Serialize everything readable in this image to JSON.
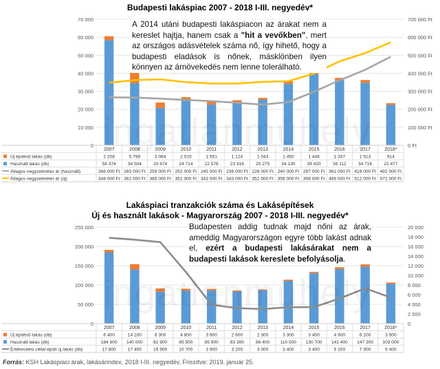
{
  "watermark": "ingatlanmühely",
  "source_label": "Forrás:",
  "source_text": "KSH Lakáspiaci árak, lakásárindex, 2018 I-III. negyedév, Frissítve: 2019. január 25.",
  "colors": {
    "new": "#ed7d31",
    "used": "#5b9bd5",
    "avg_used": "#a5a5a5",
    "avg_new": "#ffc000",
    "line2": "#8c8c8c"
  },
  "chart_data": [
    {
      "type": "bar",
      "title": "Budapesti lakáspiac 2007 - 2018 I-III. negyedév*",
      "categories": [
        "2007",
        "2008",
        "2009",
        "2010",
        "2011",
        "2012",
        "2013",
        "2014",
        "2015",
        "2016",
        "2017",
        "2018*"
      ],
      "left_ticks": [
        "70 000",
        "60 000",
        "50 000",
        "40 000",
        "30 000",
        "20 000",
        "10 000",
        "0"
      ],
      "right_ticks": [
        "700 000 Ft",
        "600 000 Ft",
        "500 000 Ft",
        "400 000 Ft",
        "300 000 Ft",
        "200 000 Ft",
        "100 000 Ft",
        "0 Ft"
      ],
      "ylim": [
        0,
        70000
      ],
      "y2lim": [
        0,
        700000
      ],
      "series": [
        {
          "name": "Új építésű lakás (db)",
          "values": [
            2208,
            5798,
            3064,
            2015,
            1551,
            1124,
            1043,
            1450,
            1446,
            1337,
            1513,
            914
          ],
          "labels": [
            "2 208",
            "5 798",
            "3 064",
            "2 015",
            "1 551",
            "1 124",
            "1 043",
            "1 450",
            "1 446",
            "1 337",
            "1 513",
            "914"
          ]
        },
        {
          "name": "Használt lakás (db)",
          "values": [
            58374,
            34504,
            20674,
            24714,
            22578,
            23916,
            25275,
            34130,
            39420,
            36112,
            34716,
            22477
          ],
          "labels": [
            "58 374",
            "34 504",
            "20 674",
            "24 714",
            "22 578",
            "23 916",
            "25 275",
            "34 130",
            "39 420",
            "36 112",
            "34 716",
            "22 477"
          ]
        },
        {
          "name": "Átlagos negyzetméter ár (használt)",
          "values": [
            266000,
            265000,
            259000,
            252000,
            245000,
            236000,
            226000,
            240000,
            297000,
            361000,
            419000,
            492000
          ],
          "labels": [
            "266 000 Ft",
            "265 000 Ft",
            "259 000 Ft",
            "252 000 Ft",
            "245 000 Ft",
            "236 000 Ft",
            "226 000 Ft",
            "240 000 Ft",
            "297 000 Ft",
            "361 000 Ft",
            "419 000 Ft",
            "492 000 Ft"
          ]
        },
        {
          "name": "Átlagos negyzetméter ár (új)",
          "values": [
            348000,
            362000,
            366000,
            351000,
            343000,
            343000,
            352000,
            356000,
            398000,
            466000,
            512000,
            572000
          ],
          "labels": [
            "348 000 Ft",
            "362 000 Ft",
            "366 000 Ft",
            "351 000 Ft",
            "343 000 Ft",
            "343 000 Ft",
            "352 000 Ft",
            "356 000 Ft",
            "398 000 Ft",
            "466 000 Ft",
            "512 000 Ft",
            "572 000 Ft"
          ]
        }
      ]
    },
    {
      "type": "bar",
      "title": "Lakáspiaci tranzakciók száma és Lakásépítések",
      "subtitle": "Új és használt lakások - Magyarország 2007 - 2018 I-III. negyedév*",
      "categories": [
        "2007",
        "2008",
        "2009",
        "2010",
        "2011",
        "2012",
        "2013",
        "2014",
        "2015",
        "2016",
        "2017",
        "2018*"
      ],
      "left_ticks": [
        "250 000",
        "200 000",
        "150 000",
        "100 000",
        "50 000",
        "0"
      ],
      "right_ticks": [
        "20 000",
        "18 000",
        "16 000",
        "14 000",
        "12 000",
        "10 000",
        "8 000",
        "6 000",
        "4 000",
        "2 000",
        "0"
      ],
      "ylim": [
        0,
        250000
      ],
      "y2lim": [
        0,
        20000
      ],
      "series": [
        {
          "name": "Új építésű lakás (db)",
          "values": [
            6400,
            14100,
            8300,
            4800,
            3900,
            2600,
            2300,
            3300,
            3400,
            4900,
            6100,
            3500
          ],
          "labels": [
            "6 400",
            "14 100",
            "8 300",
            "4 800",
            "3 900",
            "2 600",
            "2 300",
            "3 300",
            "3 400",
            "4 900",
            "6 100",
            "3 500"
          ]
        },
        {
          "name": "Használt lakás (db)",
          "values": [
            184800,
            140000,
            82900,
            85500,
            85900,
            83300,
            86400,
            110500,
            130700,
            141400,
            147300,
            103000
          ],
          "labels": [
            "184 800",
            "140 000",
            "82 900",
            "85 500",
            "85 900",
            "83 300",
            "86 400",
            "110 500",
            "130 700",
            "141 400",
            "147 300",
            "103 000"
          ]
        },
        {
          "name": "Értékesítési céllal épült új lakás (db)",
          "values": [
            17800,
            17400,
            16900,
            10700,
            3900,
            3200,
            3000,
            3400,
            3400,
            5200,
            7300,
            5400
          ],
          "labels": [
            "17 800",
            "17 400",
            "16 900",
            "10 700",
            "3 900",
            "3 200",
            "3 000",
            "3 400",
            "3 400",
            "5 200",
            "7 300",
            "5 400"
          ]
        }
      ]
    }
  ],
  "annotations": [
    {
      "html_before": "A 2014 utáni budapesti lakáspiacon az árakat nem a kereslet hajtja, hanem csak a ",
      "bold": "\"hit a vevőkben\"",
      "html_after": ", mert az országos adásvételek száma nő, így hihető, hogy a budapesti eladások is nőnek, másklönben ilyen könnyen az árnövekedés nem lenne tolerálható."
    },
    {
      "html_before": "Budapesten addig tudnak majd nőni az árak, ameddig Magyarországon egyre több lakást adnak el, ",
      "bold": "ezért a budapesti lakásárakat nem a budapesti lakások kereslete befolyásolja",
      "html_after": "."
    }
  ]
}
